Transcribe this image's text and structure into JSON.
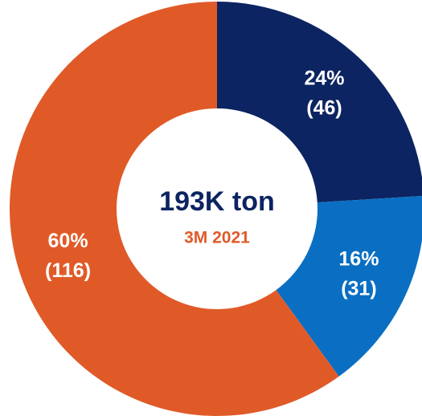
{
  "chart_data": {
    "type": "donut",
    "title": "193K ton",
    "subtitle": "3M 2021",
    "values": [
      24,
      16,
      60
    ],
    "value_labels": [
      "24%",
      "16%",
      "60%"
    ],
    "counts": [
      46,
      31,
      116
    ],
    "count_labels": [
      "(46)",
      "(31)",
      "(116)"
    ],
    "colors": [
      "#0c2461",
      "#0a6fc2",
      "#e05a28"
    ]
  }
}
